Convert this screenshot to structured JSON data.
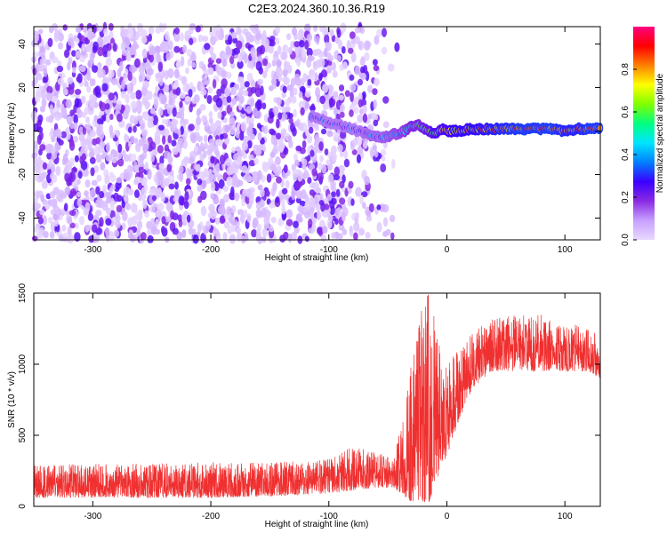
{
  "title": "C2E3.2024.360.10.36.R19",
  "chart_data": [
    {
      "type": "heatmap",
      "xlabel": "Height of straight line (km)",
      "ylabel": "Frequency (Hz)",
      "xlim": [
        -350,
        130
      ],
      "ylim": [
        -50,
        48
      ],
      "x_ticks": [
        -300,
        -200,
        -100,
        0,
        100
      ],
      "y_ticks": [
        -40,
        -20,
        0,
        20,
        40
      ],
      "colorbar": {
        "label": "Normalized spectral amplitude",
        "range": [
          0,
          1
        ],
        "ticks": [
          "0.0",
          "0.2",
          "0.4",
          "0.6",
          "0.8"
        ],
        "tick_values": [
          0.0,
          0.2,
          0.4,
          0.6,
          0.8
        ],
        "colors": [
          "#e8d8ff",
          "#c8a0ff",
          "#8a2be2",
          "#3a00ff",
          "#0080ff",
          "#00e5ff",
          "#00ff80",
          "#80ff00",
          "#ffff00",
          "#ff8000",
          "#ff0000",
          "#ff0080"
        ]
      },
      "noise_region": {
        "x_range": [
          -350,
          -40
        ],
        "y_range": [
          -50,
          48
        ],
        "amplitude_range": [
          0.0,
          0.15
        ]
      },
      "signal_trace": {
        "x": [
          -115,
          -105,
          -95,
          -85,
          -75,
          -65,
          -55,
          -48,
          -42,
          -36,
          -30,
          -25,
          -20,
          -15,
          -10,
          -5,
          0,
          10,
          20,
          40,
          60,
          80,
          90,
          100,
          110,
          120,
          130
        ],
        "y": [
          7,
          5,
          3,
          2,
          0,
          -2,
          -3,
          -2,
          -1,
          0,
          2,
          3,
          1,
          0,
          -1,
          1,
          0,
          0,
          1,
          1,
          1,
          1,
          1,
          0,
          1,
          1,
          1
        ],
        "amplitude": [
          0.35,
          0.35,
          0.35,
          0.35,
          0.35,
          0.4,
          0.4,
          0.45,
          0.45,
          0.5,
          0.55,
          0.55,
          0.6,
          0.65,
          0.7,
          0.7,
          0.75,
          0.8,
          0.8,
          0.85,
          0.9,
          0.9,
          0.9,
          0.85,
          0.85,
          0.9,
          0.9
        ]
      }
    },
    {
      "type": "line",
      "xlabel": "Height of straight line (km)",
      "ylabel": "SNR (10 * v/v)",
      "xlim": [
        -350,
        130
      ],
      "ylim": [
        0,
        1500
      ],
      "x_ticks": [
        -300,
        -200,
        -100,
        0,
        100
      ],
      "y_ticks": [
        0,
        500,
        1000,
        1500
      ],
      "color": "#f03030",
      "envelope": {
        "x": [
          -350,
          -300,
          -250,
          -200,
          -150,
          -120,
          -100,
          -80,
          -60,
          -45,
          -35,
          -28,
          -22,
          -15,
          -8,
          0,
          10,
          20,
          30,
          40,
          60,
          80,
          100,
          120,
          130
        ],
        "low": [
          60,
          60,
          60,
          60,
          70,
          80,
          90,
          110,
          130,
          130,
          60,
          20,
          20,
          30,
          200,
          350,
          600,
          800,
          900,
          950,
          950,
          950,
          950,
          950,
          900
        ],
        "high": [
          300,
          300,
          300,
          310,
          310,
          320,
          330,
          420,
          380,
          350,
          700,
          1250,
          1400,
          1500,
          1250,
          1000,
          1100,
          1200,
          1280,
          1320,
          1350,
          1350,
          1300,
          1250,
          1200
        ]
      }
    }
  ]
}
